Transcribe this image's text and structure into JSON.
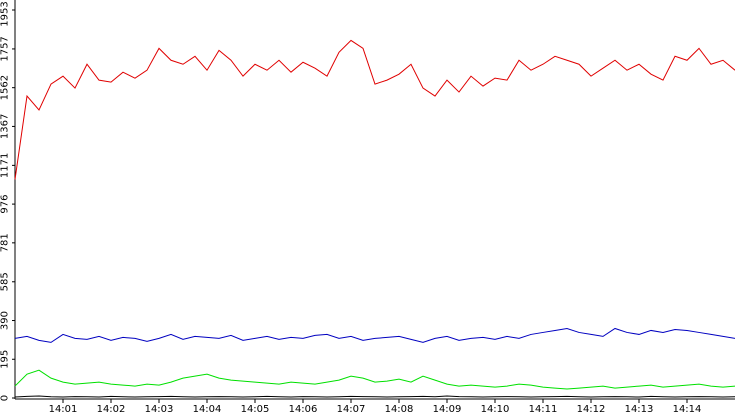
{
  "chart_data": {
    "type": "line",
    "x": [
      0,
      0.25,
      0.5,
      0.75,
      1,
      1.25,
      1.5,
      1.75,
      2,
      2.25,
      2.5,
      2.75,
      3,
      3.25,
      3.5,
      3.75,
      4,
      4.25,
      4.5,
      4.75,
      5,
      5.25,
      5.5,
      5.75,
      6,
      6.25,
      6.5,
      6.75,
      7,
      7.25,
      7.5,
      7.75,
      8,
      8.25,
      8.5,
      8.75,
      9,
      9.25,
      9.5,
      9.75,
      10,
      10.25,
      10.5,
      10.75,
      11,
      11.25,
      11.5,
      11.75,
      12,
      12.25,
      12.5,
      12.75,
      13,
      13.25,
      13.5,
      13.75,
      14,
      14.25,
      14.5,
      14.75,
      15
    ],
    "xlim": [
      0,
      15
    ],
    "xticks": [
      {
        "value": 1,
        "label": "14:01"
      },
      {
        "value": 2,
        "label": "14:02"
      },
      {
        "value": 3,
        "label": "14:03"
      },
      {
        "value": 4,
        "label": "14:04"
      },
      {
        "value": 5,
        "label": "14:05"
      },
      {
        "value": 6,
        "label": "14:06"
      },
      {
        "value": 7,
        "label": "14:07"
      },
      {
        "value": 8,
        "label": "14:08"
      },
      {
        "value": 9,
        "label": "14:09"
      },
      {
        "value": 10,
        "label": "14:10"
      },
      {
        "value": 11,
        "label": "14:11"
      },
      {
        "value": 12,
        "label": "14:12"
      },
      {
        "value": 13,
        "label": "14:13"
      },
      {
        "value": 14,
        "label": "14:14"
      }
    ],
    "ylim": [
      0,
      1953
    ],
    "yticks": [
      0,
      195,
      390,
      585,
      781,
      976,
      1171,
      1367,
      1562,
      1757,
      1953
    ],
    "grid": false,
    "series": [
      {
        "color": "#e00000",
        "values": [
          1100,
          1520,
          1450,
          1580,
          1620,
          1560,
          1680,
          1600,
          1590,
          1640,
          1610,
          1650,
          1760,
          1700,
          1680,
          1720,
          1650,
          1750,
          1700,
          1620,
          1680,
          1650,
          1700,
          1640,
          1690,
          1660,
          1620,
          1740,
          1800,
          1760,
          1580,
          1600,
          1630,
          1680,
          1560,
          1520,
          1600,
          1540,
          1620,
          1570,
          1610,
          1600,
          1700,
          1650,
          1680,
          1720,
          1700,
          1680,
          1620,
          1660,
          1700,
          1650,
          1680,
          1630,
          1600,
          1720,
          1700,
          1760,
          1680,
          1700,
          1650
        ]
      },
      {
        "color": "#0000c0",
        "values": [
          300,
          310,
          290,
          280,
          320,
          300,
          295,
          310,
          290,
          305,
          300,
          285,
          300,
          320,
          295,
          310,
          305,
          300,
          315,
          290,
          300,
          310,
          295,
          305,
          300,
          315,
          320,
          300,
          310,
          290,
          300,
          305,
          310,
          295,
          280,
          300,
          310,
          290,
          300,
          305,
          295,
          310,
          300,
          320,
          330,
          340,
          350,
          330,
          320,
          310,
          350,
          330,
          320,
          340,
          330,
          345,
          340,
          330,
          320,
          310,
          300
        ]
      },
      {
        "color": "#00e000",
        "values": [
          60,
          120,
          140,
          100,
          80,
          70,
          75,
          80,
          70,
          65,
          60,
          70,
          65,
          80,
          100,
          110,
          120,
          100,
          90,
          85,
          80,
          75,
          70,
          80,
          75,
          70,
          80,
          90,
          110,
          100,
          80,
          85,
          95,
          80,
          110,
          90,
          70,
          60,
          65,
          60,
          55,
          60,
          70,
          65,
          55,
          50,
          45,
          50,
          55,
          60,
          50,
          55,
          60,
          65,
          55,
          60,
          65,
          70,
          60,
          55,
          60
        ]
      },
      {
        "color": "#000000",
        "values": [
          5,
          8,
          10,
          6,
          5,
          7,
          6,
          5,
          8,
          6,
          5,
          6,
          7,
          8,
          6,
          5,
          6,
          7,
          6,
          5,
          6,
          8,
          6,
          5,
          7,
          6,
          5,
          6,
          8,
          7,
          6,
          5,
          6,
          7,
          8,
          6,
          10,
          7,
          6,
          5,
          6,
          7,
          6,
          5,
          6,
          7,
          8,
          6,
          5,
          6,
          7,
          6,
          5,
          8,
          6,
          5,
          6,
          7,
          6,
          5,
          6
        ]
      }
    ]
  }
}
